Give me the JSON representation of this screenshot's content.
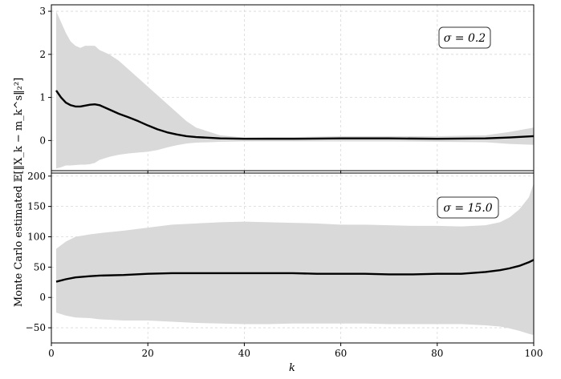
{
  "chart_data": [
    {
      "type": "line",
      "annotation": "σ = 0.2",
      "xlabel": "",
      "ylabel": "Monte Carlo estimated 𝔼[‖X_k − m_k^s‖₂²]",
      "xlim": [
        0,
        100
      ],
      "ylim": [
        -0.7,
        3.15
      ],
      "yticks": [
        "0",
        "1",
        "2",
        "3"
      ],
      "grid": true,
      "colors": {
        "line": "#000000",
        "band": "#d9d9d9"
      },
      "x": [
        1,
        2,
        3,
        4,
        5,
        6,
        7,
        8,
        9,
        10,
        12,
        14,
        16,
        18,
        20,
        22,
        24,
        26,
        28,
        30,
        35,
        40,
        45,
        50,
        60,
        70,
        80,
        90,
        95,
        100
      ],
      "mean": [
        1.16,
        1.0,
        0.88,
        0.82,
        0.79,
        0.79,
        0.81,
        0.83,
        0.84,
        0.82,
        0.72,
        0.62,
        0.54,
        0.45,
        0.35,
        0.26,
        0.19,
        0.14,
        0.1,
        0.08,
        0.05,
        0.04,
        0.04,
        0.04,
        0.05,
        0.05,
        0.04,
        0.05,
        0.07,
        0.1
      ],
      "upper": [
        3.0,
        2.75,
        2.5,
        2.3,
        2.2,
        2.15,
        2.2,
        2.2,
        2.2,
        2.1,
        2.0,
        1.85,
        1.65,
        1.45,
        1.25,
        1.05,
        0.85,
        0.65,
        0.45,
        0.3,
        0.12,
        0.07,
        0.08,
        0.08,
        0.1,
        0.1,
        0.1,
        0.12,
        0.2,
        0.3
      ],
      "lower": [
        -0.65,
        -0.62,
        -0.58,
        -0.58,
        -0.57,
        -0.56,
        -0.56,
        -0.55,
        -0.52,
        -0.45,
        -0.38,
        -0.33,
        -0.3,
        -0.28,
        -0.26,
        -0.22,
        -0.16,
        -0.11,
        -0.07,
        -0.05,
        -0.03,
        -0.02,
        -0.02,
        -0.02,
        -0.02,
        -0.02,
        -0.03,
        -0.04,
        -0.08,
        -0.1
      ]
    },
    {
      "type": "line",
      "annotation": "σ = 15.0",
      "xlabel": "k",
      "ylabel": "Monte Carlo estimated 𝔼[‖X_k − m_k^s‖₂²]",
      "xlim": [
        0,
        100
      ],
      "ylim": [
        -75,
        205
      ],
      "xticks": [
        "0",
        "20",
        "40",
        "60",
        "80",
        "100"
      ],
      "yticks": [
        "−50",
        "0",
        "50",
        "100",
        "150",
        "200"
      ],
      "grid": true,
      "colors": {
        "line": "#000000",
        "band": "#d9d9d9"
      },
      "x": [
        1,
        3,
        5,
        8,
        10,
        15,
        20,
        25,
        30,
        35,
        40,
        45,
        50,
        55,
        60,
        65,
        70,
        75,
        80,
        85,
        90,
        93,
        95,
        97,
        99,
        100
      ],
      "mean": [
        26,
        30,
        33,
        35,
        36,
        37,
        39,
        40,
        40,
        40,
        40,
        40,
        40,
        39,
        39,
        39,
        38,
        38,
        39,
        39,
        42,
        45,
        48,
        52,
        58,
        62
      ],
      "upper": [
        80,
        92,
        100,
        104,
        106,
        110,
        115,
        120,
        122,
        124,
        125,
        124,
        123,
        122,
        120,
        120,
        119,
        118,
        118,
        117,
        119,
        124,
        132,
        145,
        165,
        188
      ],
      "lower": [
        -25,
        -30,
        -33,
        -34,
        -36,
        -38,
        -38,
        -40,
        -42,
        -43,
        -44,
        -44,
        -43,
        -43,
        -43,
        -43,
        -44,
        -44,
        -44,
        -44,
        -46,
        -48,
        -51,
        -55,
        -60,
        -62
      ]
    }
  ]
}
